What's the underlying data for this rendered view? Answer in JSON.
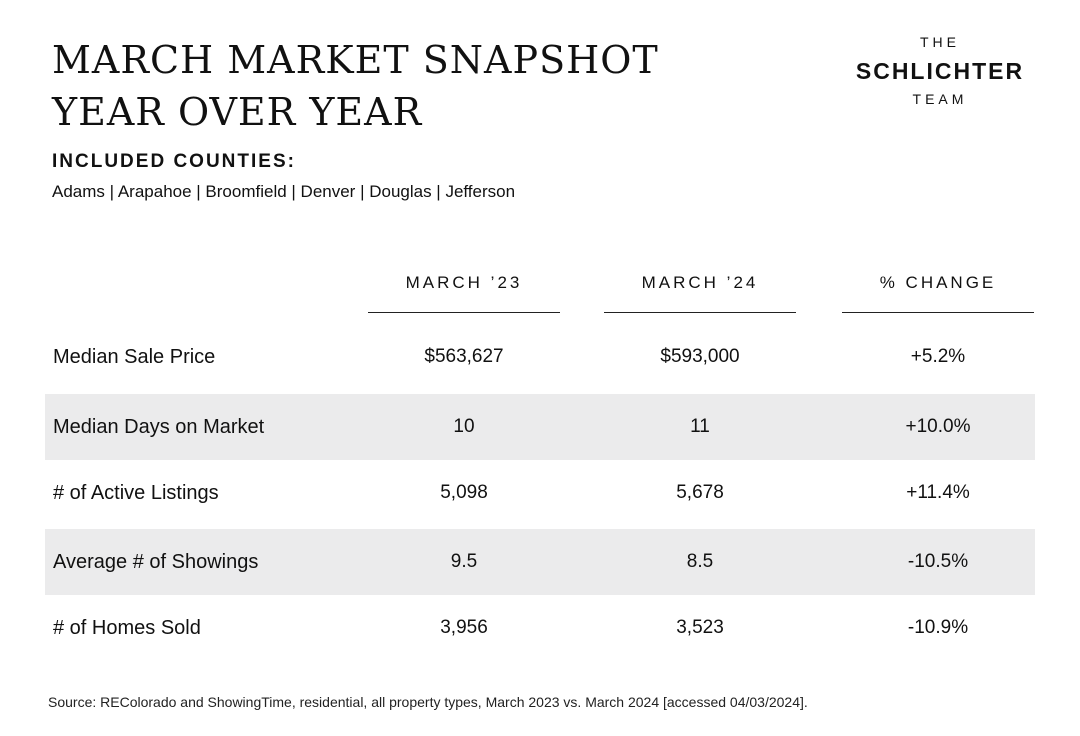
{
  "title": {
    "line1": "MARCH MARKET SNAPSHOT",
    "line2": "YEAR OVER YEAR"
  },
  "logo": {
    "top": "THE",
    "main": "SCHLICHTER",
    "bottom": "TEAM"
  },
  "counties": {
    "heading": "INCLUDED COUNTIES:",
    "list": "Adams | Arapahoe | Broomfield | Denver | Douglas | Jefferson"
  },
  "table": {
    "columns": [
      "MARCH ’23",
      "MARCH ’24",
      "% CHANGE"
    ],
    "rows": [
      {
        "label": "Median Sale Price",
        "values": [
          "$563,627",
          "$593,000",
          "+5.2%"
        ]
      },
      {
        "label": "Median Days on Market",
        "values": [
          "10",
          "11",
          "+10.0%"
        ]
      },
      {
        "label": "# of Active Listings",
        "values": [
          "5,098",
          "5,678",
          "+11.4%"
        ]
      },
      {
        "label": "Average # of Showings",
        "values": [
          "9.5",
          "8.5",
          "-10.5%"
        ]
      },
      {
        "label": "# of Homes Sold",
        "values": [
          "3,956",
          "3,523",
          "-10.9%"
        ]
      }
    ]
  },
  "source": "Source: REColorado and ShowingTime, residential, all property types, March 2023 vs. March 2024 [accessed 04/03/2024]."
}
